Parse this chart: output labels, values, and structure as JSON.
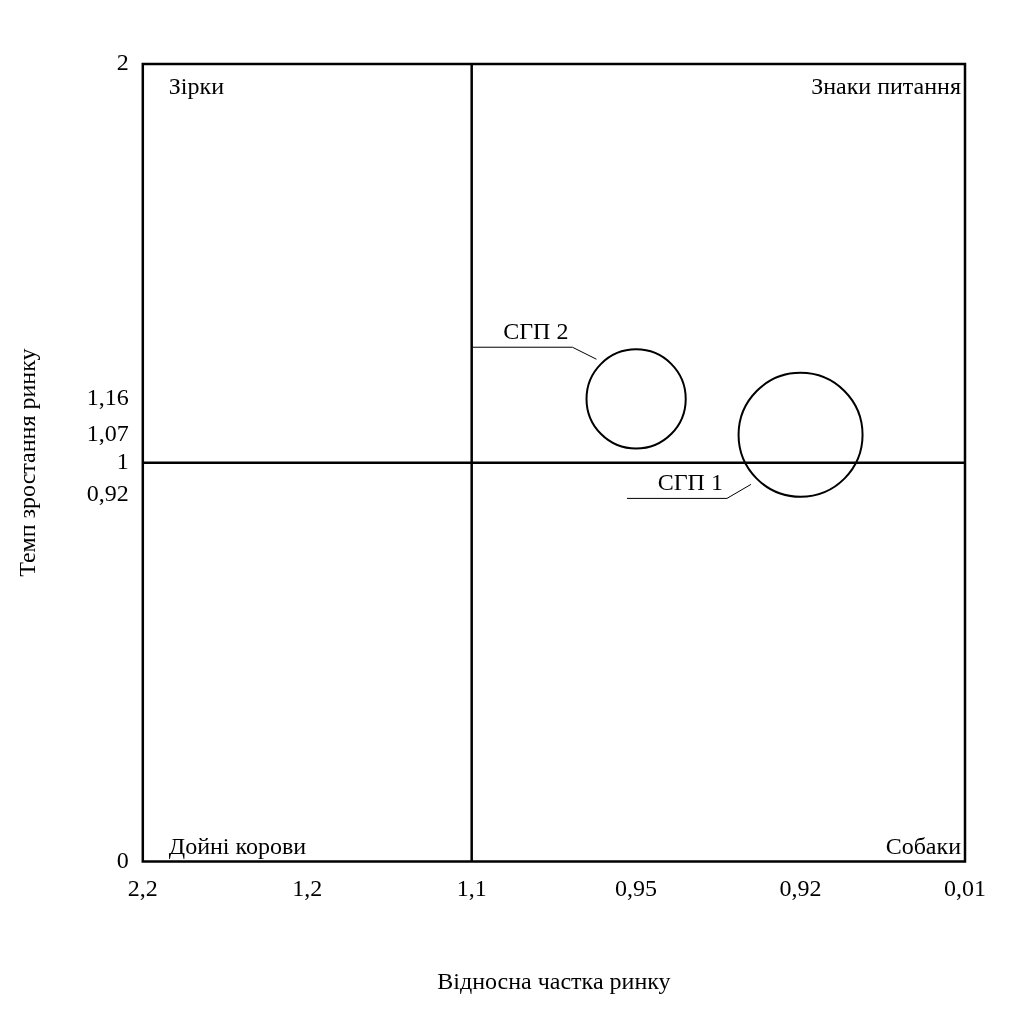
{
  "chart_data": {
    "type": "bubble",
    "xlabel": "Відносна частка ринку",
    "ylabel": "Темп зростання ринку",
    "categories": [
      "2,2",
      "1,2",
      "1,1",
      "0,95",
      "0,92",
      "0,01"
    ],
    "ylim": [
      0,
      2
    ],
    "yticks": [
      0,
      {
        "value": 0.92,
        "label": "0,92"
      },
      1,
      {
        "value": 1.07,
        "label": "1,07"
      },
      {
        "value": 1.16,
        "label": "1,16"
      },
      2
    ],
    "series": [
      {
        "name": "СГП 1",
        "color": "#000000",
        "x": [
          "0,92"
        ],
        "values": [
          1.07
        ],
        "sizes": [
          1
        ]
      },
      {
        "name": "СГП 2",
        "color": "#000000",
        "x": [
          "0,95"
        ],
        "values": [
          1.16
        ],
        "sizes": [
          0.64
        ]
      }
    ],
    "ref_lines": [
      {
        "axis": "x",
        "value": "1,1",
        "color": "#000000"
      },
      {
        "axis": "y",
        "value": 1,
        "color": "#000000"
      }
    ],
    "annotations": [
      "Зірки",
      "Знаки питання",
      "Дойні корови",
      "Собаки"
    ],
    "grid": false,
    "legend": false
  }
}
